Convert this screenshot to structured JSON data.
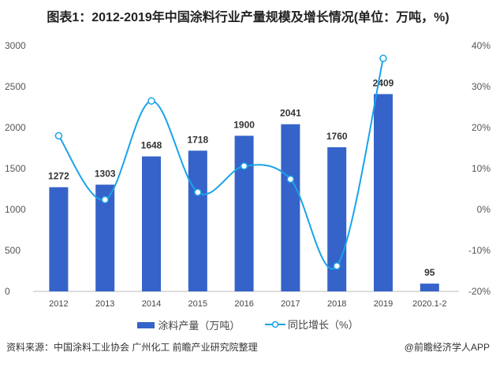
{
  "title": "图表1：2012-2019年中国涂料行业产量规模及增长情况(单位：万吨，%)",
  "chart_data": {
    "type": "bar+line",
    "categories": [
      "2012",
      "2013",
      "2014",
      "2015",
      "2016",
      "2017",
      "2018",
      "2019",
      "2020.1-2"
    ],
    "series": [
      {
        "name": "涂料产量（万吨）",
        "type": "bar",
        "axis": "left",
        "color": "#3563c9",
        "values": [
          1272,
          1303,
          1648,
          1718,
          1900,
          2041,
          1760,
          2409,
          95
        ]
      },
      {
        "name": "同比增长（%）",
        "type": "line",
        "axis": "right",
        "color": "#1aa3e8",
        "values": [
          18,
          2.4,
          26.5,
          4.2,
          10.6,
          7.4,
          -13.8,
          36.9,
          null
        ]
      }
    ],
    "ylim_left": [
      0,
      3000
    ],
    "yticks_left": [
      "0",
      "500",
      "1000",
      "1500",
      "2000",
      "2500",
      "3000"
    ],
    "ylim_right": [
      -20,
      40
    ],
    "yticks_right": [
      "-20%",
      "-10%",
      "0%",
      "10%",
      "20%",
      "30%",
      "40%"
    ],
    "grid": false,
    "legend": "bottom"
  },
  "footer": {
    "source": "资料来源：中国涂料工业协会 广州化工 前瞻产业研究院整理",
    "brand": "@前瞻经济学人APP"
  }
}
